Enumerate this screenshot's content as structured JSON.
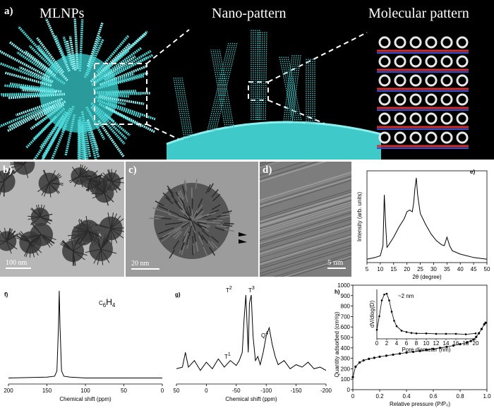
{
  "panel_a": {
    "label": "a)",
    "titles": [
      "MLNPs",
      "Nano-pattern",
      "Molecular pattern"
    ]
  },
  "tem": {
    "b": {
      "label": "b)",
      "scale": "100 nm"
    },
    "c": {
      "label": "c)",
      "scale": "20 nm"
    },
    "d": {
      "label": "d)",
      "scale": "5 nm"
    }
  },
  "chart_data": [
    {
      "id": "e",
      "label": "e)",
      "type": "line",
      "xlabel": "2θ (degree)",
      "ylabel": "Intensity (arb. units)",
      "xlim": [
        5,
        50
      ],
      "xticks": [
        "5",
        "10",
        "15",
        "20",
        "25",
        "30",
        "35",
        "40",
        "45",
        "50"
      ],
      "x": [
        5,
        8,
        10,
        11,
        11.5,
        12,
        12.5,
        13,
        15,
        17,
        19,
        20,
        21,
        22,
        22.5,
        23,
        23.5,
        24,
        25,
        27,
        29,
        31,
        33,
        34,
        35,
        36,
        37,
        40,
        45,
        50
      ],
      "y": [
        0.04,
        0.06,
        0.08,
        0.2,
        0.8,
        0.45,
        0.18,
        0.2,
        0.3,
        0.42,
        0.52,
        0.6,
        0.62,
        0.6,
        0.7,
        0.88,
        1.0,
        0.8,
        0.58,
        0.45,
        0.34,
        0.26,
        0.21,
        0.2,
        0.3,
        0.2,
        0.14,
        0.1,
        0.06,
        0.04
      ]
    },
    {
      "id": "f",
      "label": "f)",
      "type": "line",
      "xlabel": "Chemical shift (ppm)",
      "xlim": [
        200,
        0
      ],
      "xticks": [
        "200",
        "150",
        "100",
        "50",
        "0"
      ],
      "peak_label": "C",
      "peak_label_sub": "6",
      "peak_label_end": "H",
      "peak_label_sub2": "4",
      "x": [
        200,
        150,
        140,
        137,
        135,
        134,
        133,
        131,
        128,
        120,
        100,
        50,
        0
      ],
      "y": [
        0.02,
        0.03,
        0.04,
        0.1,
        0.6,
        1.0,
        0.6,
        0.1,
        0.04,
        0.03,
        0.02,
        0.02,
        0.02
      ]
    },
    {
      "id": "g",
      "label": "g)",
      "type": "line",
      "xlabel": "Chemical shift (ppm)",
      "xlim": [
        50,
        -200
      ],
      "xticks": [
        "50",
        "0",
        "-50",
        "-100",
        "-150",
        "-200"
      ],
      "peaks": [
        "T",
        "T",
        "T",
        "Q"
      ],
      "peak_sups": [
        "1",
        "2",
        "3",
        "4"
      ],
      "x": [
        50,
        40,
        35,
        30,
        20,
        10,
        0,
        -10,
        -20,
        -30,
        -40,
        -50,
        -55,
        -60,
        -63,
        -66,
        -70,
        -72,
        -75,
        -78,
        -82,
        -86,
        -90,
        -95,
        -100,
        -105,
        -110,
        -115,
        -120,
        -130,
        -140,
        -150,
        -160,
        -170,
        -180,
        -190,
        -200
      ],
      "y": [
        0.1,
        0.12,
        0.3,
        0.12,
        0.2,
        0.08,
        0.18,
        0.1,
        0.22,
        0.12,
        0.2,
        0.14,
        0.2,
        0.3,
        0.7,
        1.0,
        0.3,
        0.9,
        1.0,
        0.5,
        0.2,
        0.25,
        0.15,
        0.3,
        0.5,
        0.6,
        0.4,
        0.25,
        0.15,
        0.2,
        0.1,
        0.15,
        0.12,
        0.18,
        0.1,
        0.12,
        0.08
      ]
    },
    {
      "id": "h",
      "label": "h)",
      "type": "scatter",
      "xlabel": "Relative pressure (P/P₀)",
      "ylabel": "Quantity adsorbed (cm³/g)",
      "xlim": [
        0,
        1
      ],
      "ylim": [
        0,
        1000
      ],
      "xticks": [
        "0",
        "0.2",
        "0.4",
        "0.6",
        "0.8",
        "1.0"
      ],
      "yticks": [
        "0",
        "100",
        "200",
        "300",
        "400",
        "500",
        "600",
        "700",
        "800",
        "900",
        "1000"
      ],
      "x": [
        0.0,
        0.02,
        0.05,
        0.08,
        0.12,
        0.16,
        0.2,
        0.25,
        0.3,
        0.35,
        0.4,
        0.45,
        0.5,
        0.55,
        0.6,
        0.65,
        0.7,
        0.75,
        0.8,
        0.85,
        0.88,
        0.9,
        0.92,
        0.94,
        0.96,
        0.98,
        0.99
      ],
      "y": [
        120,
        220,
        260,
        280,
        295,
        305,
        315,
        325,
        335,
        345,
        355,
        362,
        370,
        380,
        390,
        400,
        410,
        422,
        435,
        450,
        465,
        480,
        505,
        540,
        580,
        625,
        640
      ],
      "inset": {
        "xlabel": "Pore diameter (nm)",
        "ylabel": "dV/dlog(D)",
        "annotation": "~2 nm",
        "xlim": [
          0,
          20
        ],
        "xticks": [
          "0",
          "2",
          "4",
          "6",
          "8",
          "10",
          "12",
          "14",
          "16",
          "18",
          "20"
        ],
        "x": [
          0,
          0.5,
          1,
          1.5,
          2,
          2.5,
          3,
          3.5,
          4,
          5,
          6,
          7,
          8,
          10,
          12,
          14,
          16,
          18,
          20
        ],
        "y": [
          0.2,
          0.5,
          0.85,
          0.98,
          1.0,
          0.85,
          0.6,
          0.4,
          0.28,
          0.18,
          0.15,
          0.13,
          0.12,
          0.12,
          0.11,
          0.11,
          0.11,
          0.1,
          0.12
        ]
      }
    }
  ]
}
